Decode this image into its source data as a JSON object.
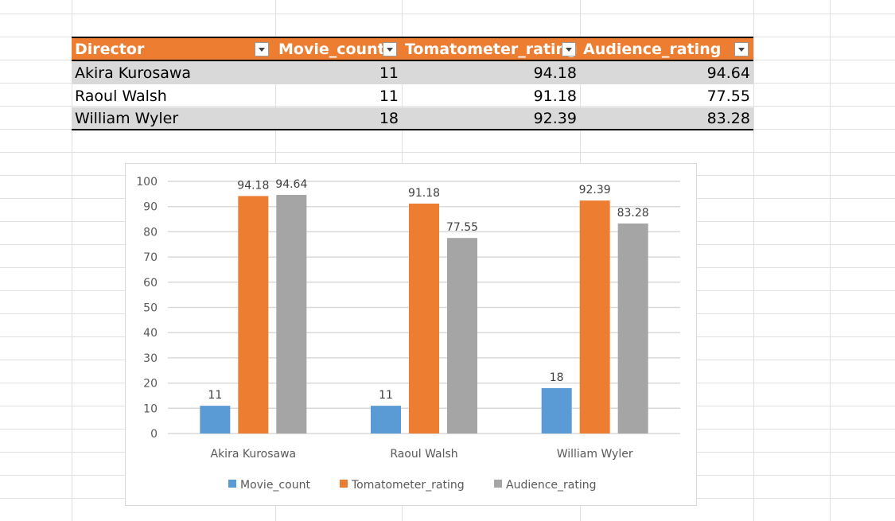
{
  "table": {
    "headers": [
      "Director",
      "Movie_count",
      "Tomatometer_rating",
      "Audience_rating"
    ],
    "rows": [
      [
        "Akira Kurosawa",
        "11",
        "94.18",
        "94.64"
      ],
      [
        "Raoul Walsh",
        "11",
        "91.18",
        "77.55"
      ],
      [
        "William Wyler",
        "18",
        "92.39",
        "83.28"
      ]
    ]
  },
  "colors": {
    "header_bg": "#ED7D31",
    "band": "#D9D9D9",
    "movie_count": "#5B9BD5",
    "tomatometer": "#ED7D31",
    "audience": "#A5A5A5",
    "gridline": "#D9D9D9"
  },
  "chart_data": {
    "type": "bar",
    "categories": [
      "Akira Kurosawa",
      "Raoul Walsh",
      "William Wyler"
    ],
    "series": [
      {
        "name": "Movie_count",
        "values": [
          11,
          11,
          18
        ],
        "labels": [
          "11",
          "11",
          "18"
        ]
      },
      {
        "name": "Tomatometer_rating",
        "values": [
          94.18,
          91.18,
          92.39
        ],
        "labels": [
          "94.18",
          "91.18",
          "92.39"
        ]
      },
      {
        "name": "Audience_rating",
        "values": [
          94.64,
          77.55,
          83.28
        ],
        "labels": [
          "94.64",
          "77.55",
          "83.28"
        ]
      }
    ],
    "ylim": [
      0,
      100
    ],
    "yticks": [
      "0",
      "10",
      "20",
      "30",
      "40",
      "50",
      "60",
      "70",
      "80",
      "90",
      "100"
    ],
    "grid": true,
    "legend_position": "bottom"
  }
}
